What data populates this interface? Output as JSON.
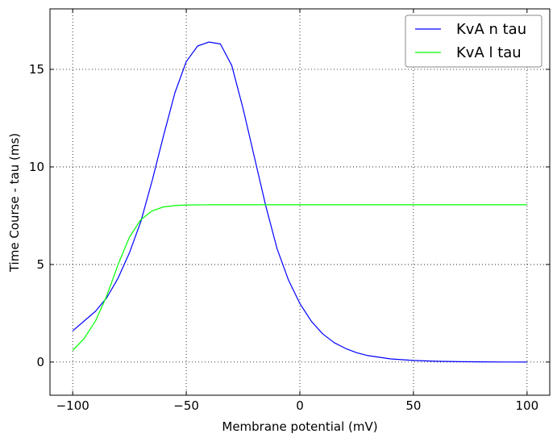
{
  "chart_data": {
    "type": "line",
    "title": "",
    "xlabel": "Membrane potential (mV)",
    "ylabel": "Time Course - tau (ms)",
    "xlim": [
      -110,
      110
    ],
    "ylim": [
      -1.7,
      18.1
    ],
    "xticks": [
      -100,
      -50,
      0,
      50,
      100
    ],
    "xtick_labels": [
      "−100",
      "−50",
      "0",
      "50",
      "100"
    ],
    "yticks": [
      0,
      5,
      10,
      15
    ],
    "ytick_labels": [
      "0",
      "5",
      "10",
      "15"
    ],
    "grid": true,
    "legend": "top-right",
    "series": [
      {
        "name": "KvA n tau",
        "color": "#0000ff",
        "points": [
          [
            -100,
            1.6
          ],
          [
            -90,
            2.6
          ],
          [
            -85,
            3.3
          ],
          [
            -80,
            4.3
          ],
          [
            -75,
            5.6
          ],
          [
            -70,
            7.2
          ],
          [
            -65,
            9.3
          ],
          [
            -60,
            11.6
          ],
          [
            -55,
            13.8
          ],
          [
            -50,
            15.4
          ],
          [
            -45,
            16.2
          ],
          [
            -40,
            16.4
          ],
          [
            -35,
            16.3
          ],
          [
            -30,
            15.2
          ],
          [
            -25,
            13.0
          ],
          [
            -20,
            10.5
          ],
          [
            -15,
            8.0
          ],
          [
            -10,
            5.8
          ],
          [
            -5,
            4.2
          ],
          [
            0,
            3.0
          ],
          [
            5,
            2.1
          ],
          [
            10,
            1.45
          ],
          [
            15,
            1.0
          ],
          [
            20,
            0.7
          ],
          [
            25,
            0.48
          ],
          [
            30,
            0.33
          ],
          [
            40,
            0.16
          ],
          [
            50,
            0.08
          ],
          [
            60,
            0.04
          ],
          [
            70,
            0.02
          ],
          [
            80,
            0.01
          ],
          [
            90,
            0.005
          ],
          [
            100,
            0.0
          ]
        ]
      },
      {
        "name": "KvA l tau",
        "color": "#00ff00",
        "points": [
          [
            -100,
            0.6
          ],
          [
            -95,
            1.2
          ],
          [
            -90,
            2.1
          ],
          [
            -85,
            3.4
          ],
          [
            -80,
            5.0
          ],
          [
            -75,
            6.4
          ],
          [
            -70,
            7.3
          ],
          [
            -65,
            7.75
          ],
          [
            -60,
            7.95
          ],
          [
            -55,
            8.02
          ],
          [
            -50,
            8.05
          ],
          [
            -40,
            8.06
          ],
          [
            0,
            8.06
          ],
          [
            50,
            8.06
          ],
          [
            100,
            8.06
          ]
        ]
      }
    ]
  }
}
